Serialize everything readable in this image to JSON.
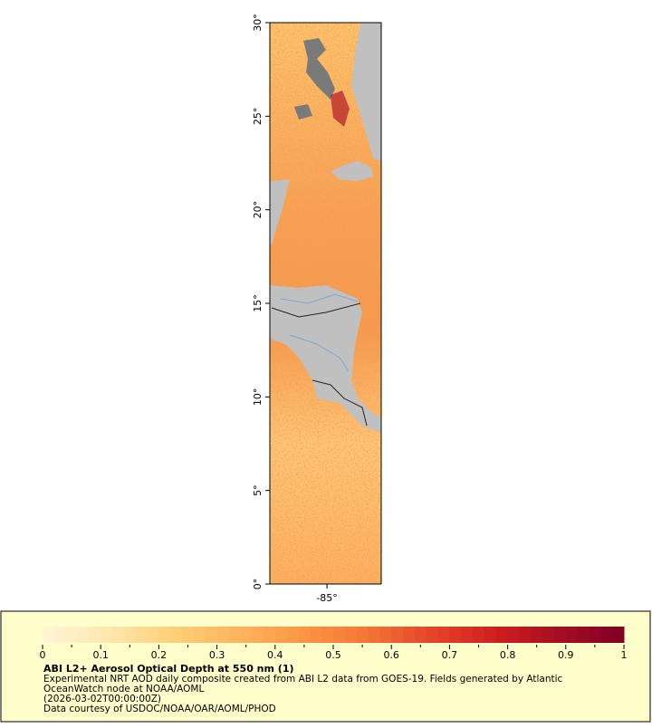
{
  "map": {
    "lat_lim": [
      0,
      30
    ],
    "lon_lim": [
      -88.05,
      -82.1
    ],
    "lat_ticks": [
      {
        "value": 0,
        "label": "0°"
      },
      {
        "value": 5,
        "label": "5°"
      },
      {
        "value": 10,
        "label": "10°"
      },
      {
        "value": 15,
        "label": "15°"
      },
      {
        "value": 20,
        "label": "20°"
      },
      {
        "value": 25,
        "label": "25°"
      },
      {
        "value": 30,
        "label": "30°"
      }
    ],
    "lon_ticks": [
      {
        "value": -85,
        "label": "-85°"
      }
    ]
  },
  "colorbar": {
    "lim": [
      0,
      1
    ],
    "ticks": [
      0,
      0.1,
      0.2,
      0.3,
      0.4,
      0.5,
      0.6,
      0.7,
      0.8,
      0.9,
      1
    ],
    "minor_ticks": [
      0.05,
      0.15,
      0.25,
      0.35,
      0.45,
      0.55,
      0.65,
      0.75,
      0.85,
      0.95
    ],
    "colors": [
      "#fff5d6",
      "#fee8b0",
      "#fed07a",
      "#fdb55e",
      "#fc9744",
      "#f57636",
      "#e5452a",
      "#d01f20",
      "#a50e22",
      "#7f0025"
    ]
  },
  "legend": {
    "title": "ABI L2+ Aerosol Optical Depth at 550 nm (1)",
    "lines": [
      "Experimental NRT AOD daily composite created from ABI L2 data from GOES-19. Fields generated by Atlantic",
      "OceanWatch node at NOAA/AOML",
      "(2026-03-02T00:00:00Z)",
      "Data courtesy of USDOC/NOAA/OAR/AOML/PHOD"
    ]
  }
}
